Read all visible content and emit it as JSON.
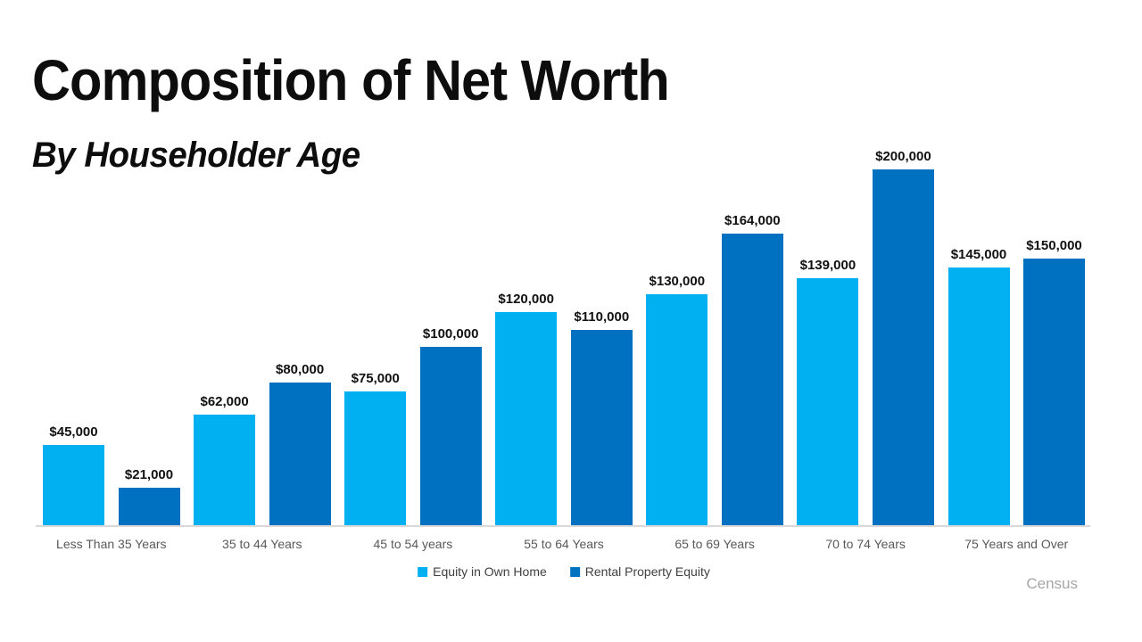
{
  "title": "Composition of Net Worth",
  "subtitle": "By Householder Age",
  "source": "Census",
  "colors": {
    "own_home": "#00B0F0",
    "rental": "#0070C0",
    "axis_line": "#D9D9D9",
    "category_text": "#595959",
    "legend_text": "#404040",
    "source_text": "#A6A6A6",
    "value_label_text": "#111111"
  },
  "chart_data": {
    "type": "bar",
    "title": "Composition of Net Worth",
    "subtitle": "By Householder Age",
    "categories": [
      "Less Than 35 Years",
      "35 to 44 Years",
      "45 to 54 years",
      "55 to 64 Years",
      "65 to 69 Years",
      "70 to 74 Years",
      "75 Years and Over"
    ],
    "series": [
      {
        "name": "Equity in Own Home",
        "color": "#00B0F0",
        "values": [
          45000,
          62000,
          75000,
          120000,
          130000,
          139000,
          145000
        ],
        "labels": [
          "$45,000",
          "$62,000",
          "$75,000",
          "$120,000",
          "$130,000",
          "$139,000",
          "$145,000"
        ]
      },
      {
        "name": "Rental Property Equity",
        "color": "#0070C0",
        "values": [
          21000,
          80000,
          100000,
          110000,
          164000,
          200000,
          150000
        ],
        "labels": [
          "$21,000",
          "$80,000",
          "$100,000",
          "$110,000",
          "$164,000",
          "$200,000",
          "$150,000"
        ]
      }
    ],
    "ylim": [
      0,
      200000
    ],
    "grid": false,
    "y_axis_shown": false,
    "legend_position": "bottom",
    "source": "Census"
  }
}
